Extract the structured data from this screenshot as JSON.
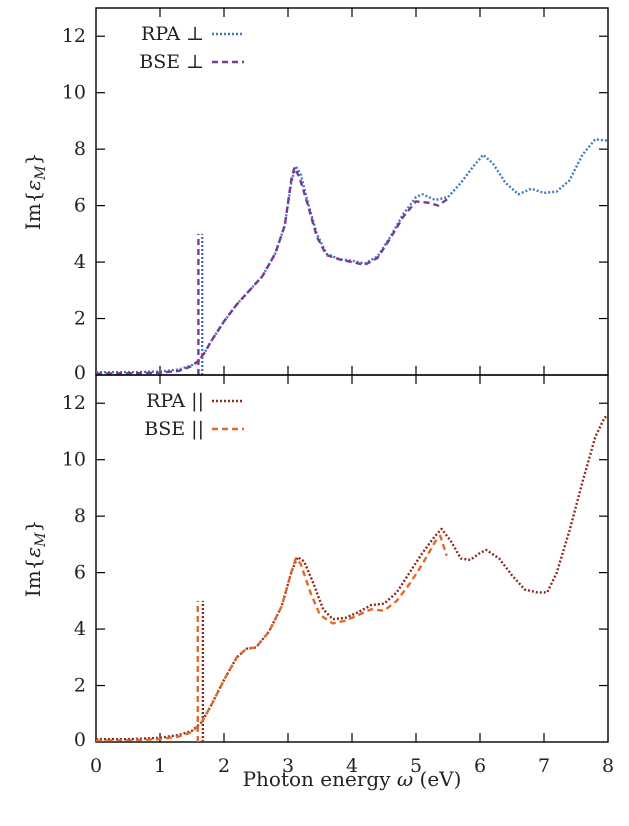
{
  "chart_data": [
    {
      "type": "line",
      "ylabel": "Im{ε_M}",
      "ylabel_parts": {
        "prefix": "Im{",
        "symbol": "ε",
        "subscript": "M",
        "suffix": "}"
      },
      "xlim": [
        0,
        8
      ],
      "ylim": [
        0,
        13
      ],
      "yticks": [
        0,
        2,
        4,
        6,
        8,
        10,
        12
      ],
      "xticks": [
        0,
        1,
        2,
        3,
        4,
        5,
        6,
        7,
        8
      ],
      "legend_position": "top-left",
      "series": [
        {
          "name": "RPA ⊥",
          "color": "#3a7cc0",
          "dash": "dotted",
          "points": [
            [
              0,
              0.1
            ],
            [
              0.5,
              0.1
            ],
            [
              1.0,
              0.12
            ],
            [
              1.3,
              0.2
            ],
            [
              1.5,
              0.35
            ],
            [
              1.6,
              0.5
            ],
            [
              1.7,
              0.8
            ],
            [
              1.8,
              1.2
            ],
            [
              2.0,
              1.9
            ],
            [
              2.2,
              2.5
            ],
            [
              2.4,
              3.0
            ],
            [
              2.6,
              3.5
            ],
            [
              2.8,
              4.3
            ],
            [
              2.95,
              5.3
            ],
            [
              3.05,
              6.8
            ],
            [
              3.12,
              7.4
            ],
            [
              3.2,
              7.1
            ],
            [
              3.3,
              6.2
            ],
            [
              3.45,
              5.0
            ],
            [
              3.6,
              4.3
            ],
            [
              3.8,
              4.1
            ],
            [
              4.0,
              4.05
            ],
            [
              4.2,
              3.95
            ],
            [
              4.4,
              4.2
            ],
            [
              4.6,
              4.9
            ],
            [
              4.8,
              5.7
            ],
            [
              5.0,
              6.3
            ],
            [
              5.1,
              6.4
            ],
            [
              5.3,
              6.2
            ],
            [
              5.5,
              6.3
            ],
            [
              5.7,
              6.8
            ],
            [
              5.9,
              7.4
            ],
            [
              6.05,
              7.8
            ],
            [
              6.2,
              7.5
            ],
            [
              6.4,
              6.8
            ],
            [
              6.6,
              6.4
            ],
            [
              6.8,
              6.6
            ],
            [
              7.0,
              6.45
            ],
            [
              7.2,
              6.5
            ],
            [
              7.4,
              6.9
            ],
            [
              7.6,
              7.8
            ],
            [
              7.8,
              8.35
            ],
            [
              8.0,
              8.3
            ]
          ],
          "spike": {
            "x": 1.66,
            "height": 5.0
          }
        },
        {
          "name": "BSE ⊥",
          "color": "#7a3a95",
          "dash": "dashed",
          "points": [
            [
              0,
              0.05
            ],
            [
              0.5,
              0.06
            ],
            [
              1.0,
              0.08
            ],
            [
              1.3,
              0.15
            ],
            [
              1.5,
              0.32
            ],
            [
              1.6,
              0.5
            ],
            [
              1.7,
              0.8
            ],
            [
              1.8,
              1.2
            ],
            [
              2.0,
              1.9
            ],
            [
              2.2,
              2.5
            ],
            [
              2.4,
              3.0
            ],
            [
              2.6,
              3.5
            ],
            [
              2.8,
              4.3
            ],
            [
              2.95,
              5.3
            ],
            [
              3.05,
              6.9
            ],
            [
              3.1,
              7.35
            ],
            [
              3.18,
              7.0
            ],
            [
              3.3,
              6.1
            ],
            [
              3.45,
              4.9
            ],
            [
              3.6,
              4.25
            ],
            [
              3.8,
              4.1
            ],
            [
              4.0,
              4.0
            ],
            [
              4.2,
              3.9
            ],
            [
              4.4,
              4.15
            ],
            [
              4.6,
              4.85
            ],
            [
              4.8,
              5.6
            ],
            [
              5.0,
              6.15
            ],
            [
              5.2,
              6.1
            ],
            [
              5.35,
              6.0
            ],
            [
              5.5,
              6.25
            ]
          ],
          "spike": {
            "x": 1.6,
            "height": 5.0
          }
        }
      ]
    },
    {
      "type": "line",
      "ylabel": "Im{ε_M}",
      "ylabel_parts": {
        "prefix": "Im{",
        "symbol": "ε",
        "subscript": "M",
        "suffix": "}"
      },
      "xlabel": "Photon energy ω (eV)",
      "xlabel_parts": {
        "prefix": "Photon energy ",
        "symbol": "ω",
        "suffix": " (eV)"
      },
      "xlim": [
        0,
        8
      ],
      "ylim": [
        0,
        13
      ],
      "yticks": [
        0,
        2,
        4,
        6,
        8,
        10,
        12
      ],
      "xticks": [
        0,
        1,
        2,
        3,
        4,
        5,
        6,
        7,
        8
      ],
      "xtick_labels": [
        "0",
        "1",
        "2",
        "3",
        "4",
        "5",
        "6",
        "7",
        "8"
      ],
      "legend_position": "top-left",
      "series": [
        {
          "name": "RPA ||",
          "color": "#8b2a1f",
          "dash": "dotted",
          "points": [
            [
              0,
              0.1
            ],
            [
              0.5,
              0.1
            ],
            [
              1.0,
              0.15
            ],
            [
              1.3,
              0.25
            ],
            [
              1.5,
              0.4
            ],
            [
              1.65,
              0.7
            ],
            [
              1.8,
              1.3
            ],
            [
              2.0,
              2.2
            ],
            [
              2.2,
              3.0
            ],
            [
              2.35,
              3.3
            ],
            [
              2.5,
              3.35
            ],
            [
              2.7,
              3.9
            ],
            [
              2.9,
              4.8
            ],
            [
              3.05,
              6.0
            ],
            [
              3.15,
              6.55
            ],
            [
              3.25,
              6.4
            ],
            [
              3.4,
              5.6
            ],
            [
              3.55,
              4.7
            ],
            [
              3.7,
              4.35
            ],
            [
              3.9,
              4.4
            ],
            [
              4.1,
              4.6
            ],
            [
              4.3,
              4.85
            ],
            [
              4.5,
              4.9
            ],
            [
              4.7,
              5.3
            ],
            [
              4.9,
              6.0
            ],
            [
              5.1,
              6.7
            ],
            [
              5.3,
              7.3
            ],
            [
              5.4,
              7.55
            ],
            [
              5.55,
              7.1
            ],
            [
              5.7,
              6.5
            ],
            [
              5.85,
              6.45
            ],
            [
              6.0,
              6.7
            ],
            [
              6.1,
              6.8
            ],
            [
              6.3,
              6.5
            ],
            [
              6.5,
              5.9
            ],
            [
              6.7,
              5.4
            ],
            [
              6.9,
              5.3
            ],
            [
              7.05,
              5.3
            ],
            [
              7.2,
              6.0
            ],
            [
              7.4,
              7.5
            ],
            [
              7.6,
              9.2
            ],
            [
              7.8,
              10.8
            ],
            [
              7.95,
              11.5
            ],
            [
              8.0,
              11.5
            ]
          ],
          "spike": {
            "x": 1.67,
            "height": 5.0
          }
        },
        {
          "name": "BSE ||",
          "color": "#e06a28",
          "dash": "dashed",
          "points": [
            [
              0,
              0.05
            ],
            [
              0.5,
              0.06
            ],
            [
              1.0,
              0.1
            ],
            [
              1.3,
              0.2
            ],
            [
              1.5,
              0.35
            ],
            [
              1.65,
              0.7
            ],
            [
              1.8,
              1.3
            ],
            [
              2.0,
              2.2
            ],
            [
              2.2,
              3.0
            ],
            [
              2.35,
              3.3
            ],
            [
              2.5,
              3.35
            ],
            [
              2.7,
              3.9
            ],
            [
              2.9,
              4.8
            ],
            [
              3.05,
              6.0
            ],
            [
              3.12,
              6.5
            ],
            [
              3.2,
              6.3
            ],
            [
              3.35,
              5.3
            ],
            [
              3.5,
              4.5
            ],
            [
              3.7,
              4.2
            ],
            [
              3.9,
              4.3
            ],
            [
              4.1,
              4.5
            ],
            [
              4.3,
              4.7
            ],
            [
              4.5,
              4.65
            ],
            [
              4.7,
              5.0
            ],
            [
              4.9,
              5.6
            ],
            [
              5.1,
              6.3
            ],
            [
              5.3,
              7.1
            ],
            [
              5.38,
              7.3
            ],
            [
              5.48,
              6.6
            ]
          ],
          "spike": {
            "x": 1.59,
            "height": 5.0
          }
        }
      ]
    }
  ]
}
